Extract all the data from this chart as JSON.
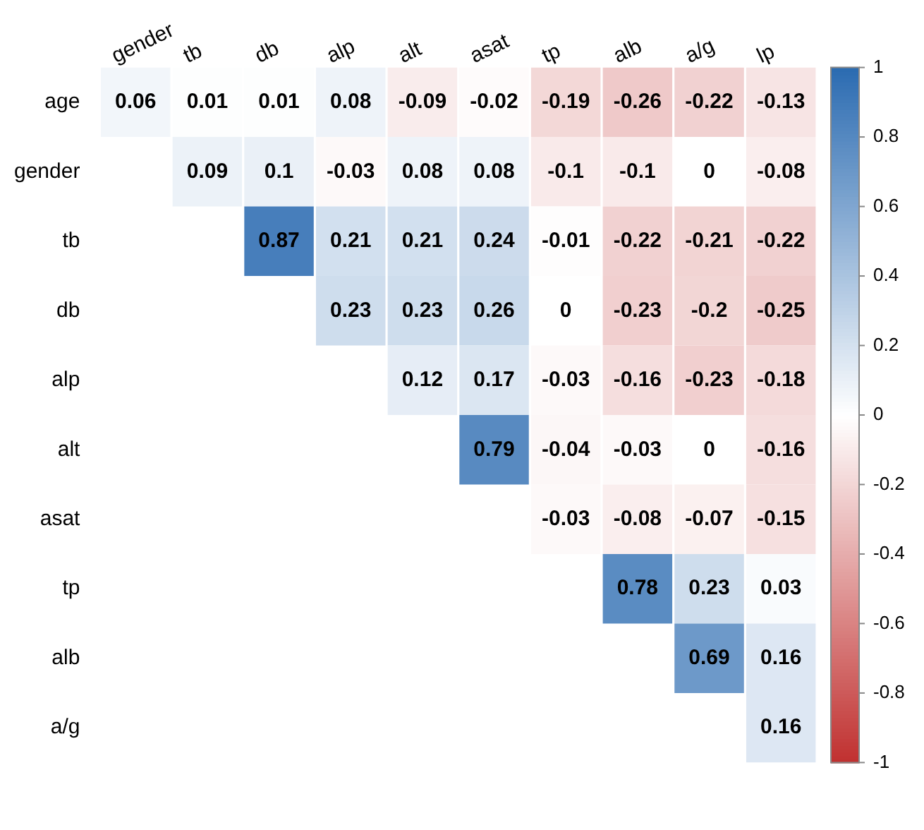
{
  "chart_data": {
    "type": "heatmap",
    "categories": [
      "gender",
      "tb",
      "db",
      "alp",
      "alt",
      "asat",
      "tp",
      "alb",
      "a/g",
      "lp"
    ],
    "y_categories": [
      "age",
      "gender",
      "tb",
      "db",
      "alp",
      "alt",
      "asat",
      "tp",
      "alb",
      "a/g"
    ],
    "cells": [
      [
        0.06,
        0.01,
        0.01,
        0.08,
        -0.09,
        -0.02,
        -0.19,
        -0.26,
        -0.22,
        -0.13
      ],
      [
        null,
        0.09,
        0.1,
        -0.03,
        0.08,
        0.08,
        -0.1,
        -0.1,
        0,
        -0.08
      ],
      [
        null,
        null,
        0.87,
        0.21,
        0.21,
        0.24,
        -0.01,
        -0.22,
        -0.21,
        -0.22
      ],
      [
        null,
        null,
        null,
        0.23,
        0.23,
        0.26,
        0,
        -0.23,
        -0.2,
        -0.25
      ],
      [
        null,
        null,
        null,
        null,
        0.12,
        0.17,
        -0.03,
        -0.16,
        -0.23,
        -0.18
      ],
      [
        null,
        null,
        null,
        null,
        null,
        0.79,
        -0.04,
        -0.03,
        0,
        -0.16
      ],
      [
        null,
        null,
        null,
        null,
        null,
        null,
        -0.03,
        -0.08,
        -0.07,
        -0.15
      ],
      [
        null,
        null,
        null,
        null,
        null,
        null,
        null,
        0.78,
        0.23,
        0.03
      ],
      [
        null,
        null,
        null,
        null,
        null,
        null,
        null,
        null,
        0.69,
        0.16
      ],
      [
        null,
        null,
        null,
        null,
        null,
        null,
        null,
        null,
        null,
        0.16
      ]
    ],
    "clim": [
      -1,
      1
    ],
    "cticks": [
      -1,
      -0.8,
      -0.6,
      -0.4,
      -0.2,
      0,
      0.2,
      0.4,
      0.6,
      0.8,
      1
    ],
    "data_labels": true
  }
}
